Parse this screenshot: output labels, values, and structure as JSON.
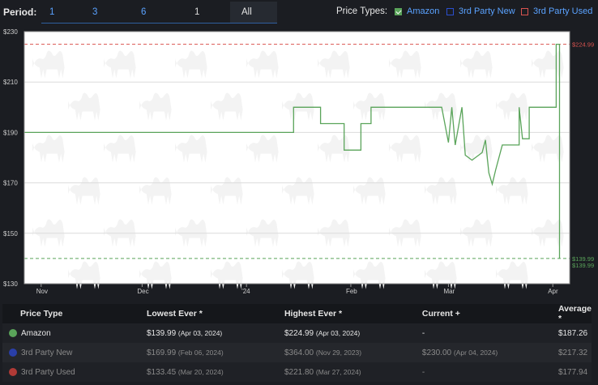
{
  "period": {
    "label": "Period:",
    "options": [
      "1 Month",
      "3 Months",
      "6 Months",
      "1 Year",
      "All"
    ],
    "selected": "All"
  },
  "price_types": {
    "label": "Price Types:",
    "items": [
      {
        "label": "Amazon",
        "checked": true,
        "color": "#5aa45a"
      },
      {
        "label": "3rd Party New",
        "checked": false,
        "color": "#2a4fd0"
      },
      {
        "label": "3rd Party Used",
        "checked": false,
        "color": "#d9534f"
      }
    ]
  },
  "chart_data": {
    "type": "line",
    "y_ticks": [
      "$230",
      "$210",
      "$190",
      "$170",
      "$150",
      "$130"
    ],
    "x_ticks": [
      "Nov",
      "Dec",
      "'24",
      "Feb",
      "Mar",
      "Apr"
    ],
    "ylim": [
      130,
      230
    ],
    "grid": true,
    "series": [
      {
        "name": "Amazon",
        "color": "#5aa45a",
        "points": [
          [
            "Oct 27",
            190
          ],
          [
            "Jan 15",
            190
          ],
          [
            "Jan 15",
            200
          ],
          [
            "Jan 23",
            200
          ],
          [
            "Jan 23",
            193.5
          ],
          [
            "Jan 30",
            193.5
          ],
          [
            "Jan 30",
            183
          ],
          [
            "Feb 04",
            183
          ],
          [
            "Feb 04",
            193.5
          ],
          [
            "Feb 07",
            193.5
          ],
          [
            "Feb 07",
            200
          ],
          [
            "Feb 28",
            200
          ],
          [
            "Mar 01",
            186
          ],
          [
            "Mar 02",
            200
          ],
          [
            "Mar 03",
            185
          ],
          [
            "Mar 05",
            200
          ],
          [
            "Mar 06",
            181
          ],
          [
            "Mar 08",
            179
          ],
          [
            "Mar 11",
            182
          ],
          [
            "Mar 12",
            187
          ],
          [
            "Mar 13",
            174
          ],
          [
            "Mar 14",
            169.5
          ],
          [
            "Mar 15",
            175
          ],
          [
            "Mar 17",
            185
          ],
          [
            "Mar 22",
            185
          ],
          [
            "Mar 22",
            200
          ],
          [
            "Mar 23",
            187.5
          ],
          [
            "Mar 25",
            187.5
          ],
          [
            "Mar 25",
            200
          ],
          [
            "Apr 02",
            200
          ],
          [
            "Apr 02",
            224.99
          ],
          [
            "Apr 03",
            224.99
          ],
          [
            "Apr 03",
            139.99
          ]
        ]
      }
    ],
    "reference_lines": [
      {
        "value": 224.99,
        "label": "$224.99",
        "color": "#d9534f"
      },
      {
        "value": 139.99,
        "label": "$139.99",
        "color": "#5aa45a"
      }
    ],
    "end_label": "$139.99"
  },
  "table": {
    "headers": [
      "Price Type",
      "Lowest Ever *",
      "Highest Ever *",
      "Current +",
      "Average *"
    ],
    "rows": [
      {
        "type": "Amazon",
        "color": "#5aa45a",
        "low": "$139.99",
        "low_date": "(Apr 03, 2024)",
        "high": "$224.99",
        "high_date": "(Apr 03, 2024)",
        "current": "-",
        "current_date": "",
        "avg": "$187.26"
      },
      {
        "type": "3rd Party New",
        "color": "#2a3fa8",
        "low": "$169.99",
        "low_date": "(Feb 06, 2024)",
        "high": "$364.00",
        "high_date": "(Nov 29, 2023)",
        "current": "$230.00",
        "current_date": "(Apr 04, 2024)",
        "avg": "$217.32"
      },
      {
        "type": "3rd Party Used",
        "color": "#b03a36",
        "low": "$133.45",
        "low_date": "(Mar 20, 2024)",
        "high": "$221.80",
        "high_date": "(Mar 27, 2024)",
        "current": "-",
        "current_date": "",
        "avg": "$177.94"
      }
    ]
  }
}
